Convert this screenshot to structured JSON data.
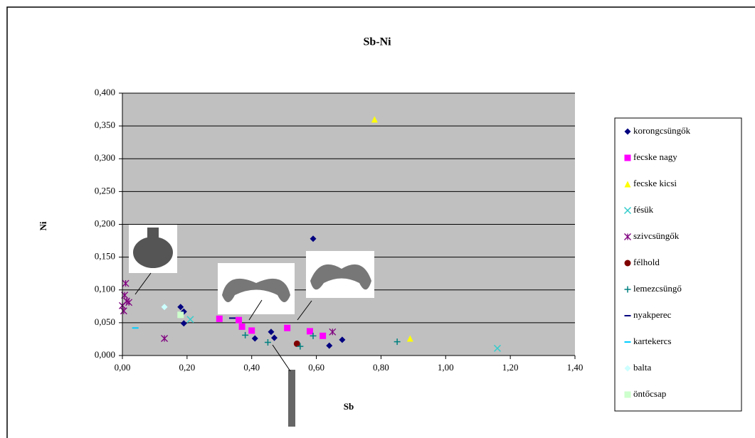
{
  "chart_data": {
    "type": "scatter",
    "title": "Sb-Ni",
    "x_label": "Sb",
    "y_label": "Ni",
    "xlim": [
      0,
      1.4
    ],
    "ylim": [
      0,
      0.4
    ],
    "xticks": [
      {
        "value": 0,
        "label": "0,00"
      },
      {
        "value": 0.2,
        "label": "0,20"
      },
      {
        "value": 0.4,
        "label": "0,40"
      },
      {
        "value": 0.6,
        "label": "0,60"
      },
      {
        "value": 0.8,
        "label": "0,80"
      },
      {
        "value": 1.0,
        "label": "1,00"
      },
      {
        "value": 1.2,
        "label": "1,20"
      },
      {
        "value": 1.4,
        "label": "1,40"
      }
    ],
    "yticks": [
      {
        "value": 0,
        "label": "0,000"
      },
      {
        "value": 0.05,
        "label": "0,050"
      },
      {
        "value": 0.1,
        "label": "0,100"
      },
      {
        "value": 0.15,
        "label": "0,150"
      },
      {
        "value": 0.2,
        "label": "0,200"
      },
      {
        "value": 0.25,
        "label": "0,250"
      },
      {
        "value": 0.3,
        "label": "0,300"
      },
      {
        "value": 0.35,
        "label": "0,350"
      },
      {
        "value": 0.4,
        "label": "0,400"
      }
    ],
    "grid": true,
    "legend": "right",
    "series": [
      {
        "name": "korongcsüngők",
        "color": "#000080",
        "marker": "diamond",
        "x": [
          0.18,
          0.19,
          0.19,
          0.59,
          0.46,
          0.47,
          0.41,
          0.64,
          0.68
        ],
        "values": [
          0.074,
          0.067,
          0.049,
          0.178,
          0.036,
          0.027,
          0.026,
          0.015,
          0.024
        ]
      },
      {
        "name": "fecske nagy",
        "color": "#ff00ff",
        "marker": "square",
        "x": [
          0.3,
          0.36,
          0.37,
          0.4,
          0.51,
          0.58,
          0.62
        ],
        "values": [
          0.056,
          0.054,
          0.044,
          0.038,
          0.042,
          0.037,
          0.03
        ]
      },
      {
        "name": "fecske kicsi",
        "color": "#ffff00",
        "marker": "triangle",
        "x": [
          0.78,
          0.89
        ],
        "values": [
          0.36,
          0.026
        ]
      },
      {
        "name": "fésük",
        "color": "#33cccc",
        "marker": "x",
        "x": [
          1.16,
          0.21
        ],
        "values": [
          0.011,
          0.055
        ]
      },
      {
        "name": "szivcsüngők",
        "color": "#800080",
        "marker": "asterisk",
        "x": [
          0.01,
          0.007,
          0.013,
          0.02,
          0.004,
          0.0,
          0.13,
          0.65
        ],
        "values": [
          0.11,
          0.092,
          0.083,
          0.081,
          0.068,
          0.076,
          0.026,
          0.036
        ]
      },
      {
        "name": "félhold",
        "color": "#800000",
        "marker": "circle",
        "x": [
          0.54
        ],
        "values": [
          0.018
        ]
      },
      {
        "name": "lemezcsüngő",
        "color": "#008080",
        "marker": "plus",
        "x": [
          0.38,
          0.45,
          0.55,
          0.59,
          0.85
        ],
        "values": [
          0.031,
          0.02,
          0.014,
          0.03,
          0.021
        ]
      },
      {
        "name": "nyakperec",
        "color": "#000080",
        "marker": "dash",
        "x": [
          0.34
        ],
        "values": [
          0.057
        ]
      },
      {
        "name": "kartekercs",
        "color": "#00ccff",
        "marker": "dash",
        "x": [
          0.04
        ],
        "values": [
          0.042
        ]
      },
      {
        "name": "balta",
        "color": "#ccffff",
        "marker": "diamond",
        "x": [
          0.13
        ],
        "values": [
          0.074
        ]
      },
      {
        "name": "öntőcsap",
        "color": "#ccffcc",
        "marker": "square",
        "x": [
          0.18
        ],
        "values": [
          0.062
        ]
      }
    ]
  }
}
